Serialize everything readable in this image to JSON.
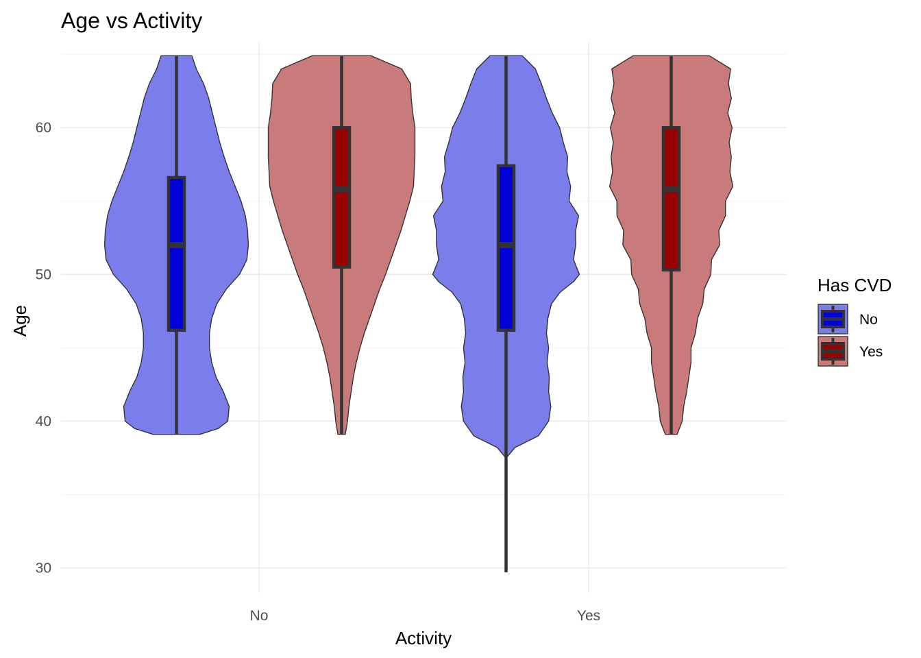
{
  "chart_data": {
    "type": "violin",
    "title": "Age vs Activity",
    "xlabel": "Activity",
    "ylabel": "Age",
    "categories": [
      "No",
      "Yes"
    ],
    "ylim": [
      28.3,
      65.8
    ],
    "y_ticks": [
      30,
      40,
      50,
      60
    ],
    "grid": true,
    "legend": {
      "title": "Has CVD",
      "position": "right",
      "entries": [
        {
          "label": "No",
          "violin_color": "#7b7dea",
          "box_color": "#0000d8"
        },
        {
          "label": "Yes",
          "violin_color": "#c97b7b",
          "box_color": "#990000"
        }
      ]
    },
    "series": [
      {
        "name": "No",
        "violin_color": "#7b7dea",
        "box_color": "#0000d8",
        "groups": [
          {
            "category": "No",
            "min": 39.1,
            "q1": 46.2,
            "median": 52.0,
            "q3": 56.6,
            "max": 64.9,
            "density": [
              [
                39.1,
                0.32
              ],
              [
                39.5,
                0.57
              ],
              [
                40,
                0.7
              ],
              [
                41,
                0.72
              ],
              [
                42,
                0.64
              ],
              [
                43,
                0.54
              ],
              [
                44,
                0.48
              ],
              [
                45,
                0.45
              ],
              [
                46,
                0.45
              ],
              [
                47,
                0.48
              ],
              [
                48,
                0.55
              ],
              [
                49,
                0.68
              ],
              [
                50,
                0.86
              ],
              [
                51,
                0.96
              ],
              [
                52,
                0.98
              ],
              [
                53,
                0.97
              ],
              [
                54,
                0.94
              ],
              [
                55,
                0.88
              ],
              [
                56,
                0.8
              ],
              [
                57,
                0.72
              ],
              [
                58,
                0.65
              ],
              [
                59,
                0.59
              ],
              [
                60,
                0.54
              ],
              [
                61,
                0.49
              ],
              [
                62,
                0.44
              ],
              [
                63,
                0.37
              ],
              [
                64,
                0.27
              ],
              [
                64.9,
                0.21
              ]
            ]
          },
          {
            "category": "Yes",
            "min": 29.7,
            "q1": 46.2,
            "median": 52.0,
            "q3": 57.4,
            "max": 64.9,
            "density": [
              [
                37.6,
                0.02
              ],
              [
                38.2,
                0.12
              ],
              [
                39,
                0.44
              ],
              [
                40,
                0.58
              ],
              [
                41,
                0.61
              ],
              [
                42,
                0.58
              ],
              [
                43,
                0.59
              ],
              [
                44,
                0.56
              ],
              [
                45,
                0.58
              ],
              [
                46,
                0.55
              ],
              [
                47,
                0.57
              ],
              [
                48,
                0.62
              ],
              [
                48.8,
                0.74
              ],
              [
                49.5,
                0.92
              ],
              [
                50,
                1.0
              ],
              [
                51,
                0.92
              ],
              [
                52,
                0.95
              ],
              [
                53,
                0.95
              ],
              [
                54,
                0.99
              ],
              [
                55,
                0.86
              ],
              [
                56,
                0.88
              ],
              [
                57,
                0.83
              ],
              [
                58,
                0.84
              ],
              [
                59,
                0.78
              ],
              [
                60,
                0.73
              ],
              [
                61,
                0.63
              ],
              [
                62,
                0.55
              ],
              [
                63,
                0.48
              ],
              [
                64,
                0.4
              ],
              [
                64.9,
                0.22
              ]
            ]
          }
        ]
      },
      {
        "name": "Yes",
        "violin_color": "#c97b7b",
        "box_color": "#990000",
        "groups": [
          {
            "category": "No",
            "min": 39.1,
            "q1": 50.5,
            "median": 55.8,
            "q3": 60.0,
            "max": 64.9,
            "density": [
              [
                39.1,
                0.05
              ],
              [
                40,
                0.08
              ],
              [
                41,
                0.1
              ],
              [
                42,
                0.13
              ],
              [
                43,
                0.16
              ],
              [
                44,
                0.2
              ],
              [
                45,
                0.25
              ],
              [
                46,
                0.31
              ],
              [
                47,
                0.38
              ],
              [
                48,
                0.45
              ],
              [
                49,
                0.52
              ],
              [
                50,
                0.6
              ],
              [
                51,
                0.67
              ],
              [
                52,
                0.74
              ],
              [
                53,
                0.81
              ],
              [
                54,
                0.87
              ],
              [
                55,
                0.93
              ],
              [
                56,
                0.98
              ],
              [
                57,
                0.99
              ],
              [
                58,
                1.0
              ],
              [
                59,
                1.0
              ],
              [
                60,
                1.0
              ],
              [
                61,
                0.97
              ],
              [
                62,
                0.95
              ],
              [
                63,
                0.94
              ],
              [
                64,
                0.82
              ],
              [
                64.9,
                0.4
              ]
            ]
          },
          {
            "category": "Yes",
            "min": 39.1,
            "q1": 50.3,
            "median": 55.8,
            "q3": 60.0,
            "max": 64.9,
            "density": [
              [
                39.1,
                0.08
              ],
              [
                40,
                0.15
              ],
              [
                41,
                0.17
              ],
              [
                42,
                0.21
              ],
              [
                43,
                0.24
              ],
              [
                44,
                0.27
              ],
              [
                45,
                0.27
              ],
              [
                46,
                0.33
              ],
              [
                47,
                0.36
              ],
              [
                48,
                0.43
              ],
              [
                49,
                0.45
              ],
              [
                50,
                0.54
              ],
              [
                51,
                0.55
              ],
              [
                52,
                0.66
              ],
              [
                53,
                0.65
              ],
              [
                54,
                0.74
              ],
              [
                55,
                0.74
              ],
              [
                56,
                0.84
              ],
              [
                57,
                0.8
              ],
              [
                58,
                0.82
              ],
              [
                59,
                0.79
              ],
              [
                60,
                0.83
              ],
              [
                61,
                0.77
              ],
              [
                62,
                0.82
              ],
              [
                63,
                0.78
              ],
              [
                64,
                0.81
              ],
              [
                64.9,
                0.52
              ]
            ]
          }
        ]
      }
    ]
  }
}
